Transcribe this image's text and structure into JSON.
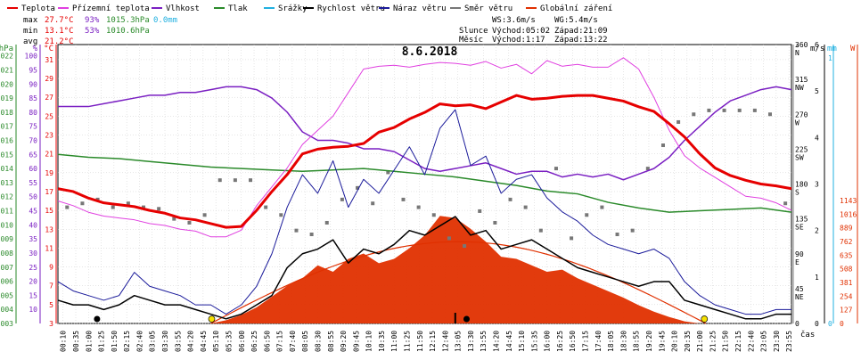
{
  "legend": {
    "items": [
      {
        "label": "Teplota",
        "color": "#e60000"
      },
      {
        "label": "Přízemní teplota",
        "color": "#e040e0"
      },
      {
        "label": "Vlhkost",
        "color": "#7a1fc2"
      },
      {
        "label": "Tlak",
        "color": "#2a8a2a"
      },
      {
        "label": "Srážky",
        "color": "#20b0e0"
      },
      {
        "label": "Rychlost větru",
        "color": "#000000"
      },
      {
        "label": "Náraz větru",
        "color": "#1a1a9a"
      },
      {
        "label": "Směr větru",
        "color": "#777777"
      },
      {
        "label": "Globální záření",
        "color": "#e03000"
      }
    ]
  },
  "stats": {
    "max": {
      "label": "max",
      "temp": "27.7°C",
      "hum": "93%",
      "press": "1015.3hPa",
      "rain": "0.0mm"
    },
    "min": {
      "label": "min",
      "temp": "13.1°C",
      "hum": "53%",
      "press": "1010.6hPa"
    },
    "avg": {
      "label": "avg",
      "temp": "21.2°C"
    }
  },
  "wind": {
    "ws": "WS:3.6m/s",
    "wg": "WG:5.4m/s"
  },
  "sun": {
    "label": "Slunce",
    "rise": "Východ:05:02",
    "set": "Západ:21:09"
  },
  "moon": {
    "label": "Měsíc",
    "rise": "Východ:1:17",
    "set": "Západ:13:22"
  },
  "colors": {
    "temp": "#e60000",
    "dew": "#e040e0",
    "hum": "#7a1fc2",
    "press": "#2a8a2a",
    "rain": "#20b0e0",
    "ws": "#000000",
    "wg": "#1a1a9a",
    "dir": "#777777",
    "rad": "#e03000",
    "bg": "#ffffff",
    "grid": "#cccccc"
  },
  "chart_data": {
    "type": "line",
    "title": "8.6.2018",
    "xlabel": "čas",
    "x_range_hours": [
      0,
      24
    ],
    "x_ticks": [
      "00:10",
      "00:35",
      "01:00",
      "01:25",
      "01:50",
      "02:15",
      "02:40",
      "03:05",
      "03:30",
      "03:55",
      "04:20",
      "04:45",
      "05:10",
      "05:35",
      "06:00",
      "06:25",
      "06:50",
      "07:15",
      "07:40",
      "08:05",
      "08:30",
      "08:55",
      "09:20",
      "09:45",
      "10:10",
      "10:35",
      "11:00",
      "11:25",
      "11:50",
      "12:15",
      "12:40",
      "13:05",
      "13:30",
      "13:55",
      "14:20",
      "14:45",
      "15:10",
      "15:35",
      "16:00",
      "16:25",
      "16:50",
      "17:15",
      "17:40",
      "18:05",
      "18:30",
      "18:55",
      "19:20",
      "19:45",
      "20:10",
      "20:35",
      "21:00",
      "21:25",
      "21:50",
      "22:15",
      "22:40",
      "23:05",
      "23:30",
      "23:55"
    ],
    "axes": {
      "press": {
        "label": "hPa",
        "ticks": [
          "1003",
          "1004",
          "1005",
          "1006",
          "1007",
          "1008",
          "1009",
          "1010",
          "1011",
          "1012",
          "1013",
          "1014",
          "1015",
          "1016",
          "1017",
          "1018",
          "1019",
          "1020",
          "1021",
          "1022"
        ],
        "range": [
          1003,
          1022.8
        ]
      },
      "hum": {
        "label": "%",
        "ticks": [
          "10",
          "15",
          "20",
          "25",
          "30",
          "35",
          "40",
          "45",
          "50",
          "55",
          "60",
          "65",
          "70",
          "75",
          "80",
          "85",
          "90",
          "95",
          "100"
        ],
        "range": [
          5,
          104
        ]
      },
      "temp": {
        "label": "°C",
        "ticks": [
          "3",
          "5",
          "7",
          "9",
          "11",
          "13",
          "15",
          "17",
          "19",
          "21",
          "23",
          "25",
          "27",
          "29",
          "31"
        ],
        "range": [
          3,
          32.6
        ]
      },
      "dir": {
        "label": "°",
        "ticks": [
          "0",
          "45 NE",
          "90 E",
          "135 SE",
          "180 S",
          "225 SW",
          "270 W",
          "315 NW",
          "360 N"
        ],
        "range": [
          0,
          360
        ]
      },
      "windspeed": {
        "label": "m/s",
        "ticks": [
          "0",
          "1",
          "2",
          "3",
          "4",
          "5",
          "6"
        ],
        "range": [
          0,
          6
        ]
      },
      "rain": {
        "label": "mm",
        "ticks": [
          "0",
          "1"
        ],
        "range": [
          0,
          1
        ]
      },
      "rad": {
        "label": "W",
        "ticks": [
          "0",
          "127",
          "254",
          "381",
          "508",
          "635",
          "762",
          "889",
          "1016",
          "1143"
        ],
        "range": [
          0,
          1143
        ]
      }
    },
    "series": [
      {
        "name": "Teplota",
        "unit": "°C",
        "x": [
          0,
          0.5,
          1,
          1.5,
          2,
          2.5,
          3,
          3.5,
          4,
          4.5,
          5,
          5.5,
          6,
          6.5,
          7,
          7.5,
          8,
          8.5,
          9,
          9.5,
          10,
          10.5,
          11,
          11.5,
          12,
          12.5,
          13,
          13.5,
          14,
          14.5,
          15,
          15.5,
          16,
          16.5,
          17,
          17.5,
          18,
          18.5,
          19,
          19.5,
          20,
          20.5,
          21,
          21.5,
          22,
          22.5,
          23,
          23.5,
          24
        ],
        "values": [
          17.3,
          17,
          16.3,
          15.8,
          15.6,
          15.4,
          15,
          14.7,
          14.2,
          14,
          13.6,
          13.2,
          13.3,
          15,
          17,
          18.8,
          21,
          21.5,
          21.7,
          21.8,
          22.1,
          23.3,
          23.8,
          24.7,
          25.4,
          26.3,
          26.1,
          26.2,
          25.8,
          26.5,
          27.2,
          26.8,
          26.9,
          27.1,
          27.2,
          27.2,
          26.9,
          26.6,
          26,
          25.5,
          24.2,
          22.8,
          21,
          19.5,
          18.7,
          18.2,
          17.8,
          17.6,
          17.3
        ]
      },
      {
        "name": "Přízemní teplota",
        "unit": "°C",
        "x": [
          0,
          0.5,
          1,
          1.5,
          2,
          2.5,
          3,
          3.5,
          4,
          4.5,
          5,
          5.5,
          6,
          6.5,
          7,
          7.5,
          8,
          8.5,
          9,
          9.5,
          10,
          10.5,
          11,
          11.5,
          12,
          12.5,
          13,
          13.5,
          14,
          14.5,
          15,
          15.5,
          16,
          16.5,
          17,
          17.5,
          18,
          18.5,
          19,
          19.5,
          20,
          20.5,
          21,
          21.5,
          22,
          22.5,
          23,
          23.5,
          24
        ],
        "values": [
          16,
          15.5,
          14.8,
          14.4,
          14.2,
          14,
          13.6,
          13.4,
          13,
          12.8,
          12.2,
          12.2,
          12.9,
          15.5,
          17.5,
          19.5,
          22,
          23.5,
          25,
          27.5,
          30,
          30.3,
          30.4,
          30.2,
          30.5,
          30.7,
          30.6,
          30.4,
          30.8,
          30.1,
          30.5,
          29.5,
          30.9,
          30.3,
          30.5,
          30.2,
          30.2,
          31.2,
          30,
          27,
          23.5,
          20.8,
          19.5,
          18.5,
          17.5,
          16.5,
          16.3,
          15.8,
          15
        ]
      },
      {
        "name": "Vlhkost",
        "unit": "%",
        "x": [
          0,
          0.5,
          1,
          1.5,
          2,
          2.5,
          3,
          3.5,
          4,
          4.5,
          5,
          5.5,
          6,
          6.5,
          7,
          7.5,
          8,
          8.5,
          9,
          9.5,
          10,
          10.5,
          11,
          11.5,
          12,
          12.5,
          13,
          13.5,
          14,
          14.5,
          15,
          15.5,
          16,
          16.5,
          17,
          17.5,
          18,
          18.5,
          19,
          19.5,
          20,
          20.5,
          21,
          21.5,
          22,
          22.5,
          23,
          23.5,
          24
        ],
        "values": [
          82,
          82,
          82,
          83,
          84,
          85,
          86,
          86,
          87,
          87,
          88,
          89,
          89,
          88,
          85,
          80,
          73,
          70,
          70,
          69,
          67,
          67,
          66,
          63,
          60,
          59,
          60,
          61,
          62,
          60,
          58,
          59,
          59,
          57,
          58,
          57,
          58,
          56,
          58,
          60,
          64,
          70,
          75,
          80,
          84,
          86,
          88,
          89,
          88
        ]
      },
      {
        "name": "Tlak",
        "unit": "hPa",
        "x": [
          0,
          1,
          2,
          3,
          4,
          5,
          6,
          7,
          8,
          9,
          10,
          11,
          12,
          13,
          14,
          15,
          16,
          17,
          18,
          19,
          20,
          21,
          22,
          23,
          24
        ],
        "values": [
          1015,
          1014.8,
          1014.7,
          1014.5,
          1014.3,
          1014.1,
          1014,
          1013.9,
          1013.8,
          1013.9,
          1014,
          1013.8,
          1013.6,
          1013.4,
          1013.1,
          1012.8,
          1012.4,
          1012.2,
          1011.6,
          1011.2,
          1010.9,
          1011,
          1011.1,
          1011.2,
          1010.9
        ]
      },
      {
        "name": "Rychlost větru",
        "unit": "m/s",
        "x": [
          0,
          0.5,
          1,
          1.5,
          2,
          2.5,
          3,
          3.5,
          4,
          4.5,
          5,
          5.5,
          6,
          6.5,
          7,
          7.5,
          8,
          8.5,
          9,
          9.5,
          10,
          10.5,
          11,
          11.5,
          12,
          12.5,
          13,
          13.5,
          14,
          14.5,
          15,
          15.5,
          16,
          16.5,
          17,
          17.5,
          18,
          18.5,
          19,
          19.5,
          20,
          20.5,
          21,
          21.5,
          22,
          22.5,
          23,
          23.5,
          24
        ],
        "values": [
          0.5,
          0.4,
          0.4,
          0.3,
          0.4,
          0.6,
          0.5,
          0.4,
          0.4,
          0.3,
          0.2,
          0.1,
          0.2,
          0.4,
          0.6,
          1.2,
          1.5,
          1.6,
          1.8,
          1.3,
          1.6,
          1.5,
          1.7,
          2,
          1.9,
          2.1,
          2.3,
          1.9,
          2,
          1.6,
          1.7,
          1.8,
          1.6,
          1.4,
          1.2,
          1.1,
          1,
          0.9,
          0.8,
          0.9,
          0.9,
          0.5,
          0.4,
          0.3,
          0.2,
          0.1,
          0.1,
          0.2,
          0.2
        ]
      },
      {
        "name": "Náraz větru",
        "unit": "m/s",
        "x": [
          0,
          0.5,
          1,
          1.5,
          2,
          2.5,
          3,
          3.5,
          4,
          4.5,
          5,
          5.5,
          6,
          6.5,
          7,
          7.5,
          8,
          8.5,
          9,
          9.5,
          10,
          10.5,
          11,
          11.5,
          12,
          12.5,
          13,
          13.5,
          14,
          14.5,
          15,
          15.5,
          16,
          16.5,
          17,
          17.5,
          18,
          18.5,
          19,
          19.5,
          20,
          20.5,
          21,
          21.5,
          22,
          22.5,
          23,
          23.5,
          24
        ],
        "values": [
          0.9,
          0.7,
          0.6,
          0.5,
          0.6,
          1.1,
          0.8,
          0.7,
          0.6,
          0.4,
          0.4,
          0.2,
          0.4,
          0.8,
          1.5,
          2.5,
          3.2,
          2.8,
          3.5,
          2.5,
          3.1,
          2.8,
          3.3,
          3.8,
          3.2,
          4.2,
          4.6,
          3.4,
          3.6,
          2.8,
          3.1,
          3.2,
          2.7,
          2.4,
          2.2,
          1.9,
          1.7,
          1.6,
          1.5,
          1.6,
          1.4,
          0.9,
          0.6,
          0.4,
          0.3,
          0.2,
          0.2,
          0.3,
          0.3
        ]
      },
      {
        "name": "Globální záření",
        "unit": "W",
        "x": [
          5,
          5.5,
          6,
          6.5,
          7,
          7.5,
          8,
          8.5,
          9,
          9.5,
          10,
          10.5,
          11,
          11.5,
          12,
          12.5,
          13,
          13.5,
          14,
          14.5,
          15,
          15.5,
          16,
          16.5,
          17,
          17.5,
          18,
          18.5,
          19,
          19.5,
          20,
          20.5,
          21
        ],
        "values": [
          0,
          30,
          80,
          150,
          250,
          350,
          420,
          540,
          480,
          600,
          650,
          560,
          600,
          700,
          820,
          1000,
          980,
          880,
          760,
          620,
          600,
          540,
          480,
          500,
          420,
          360,
          300,
          240,
          170,
          110,
          60,
          20,
          0
        ]
      },
      {
        "name": "Směr větru",
        "unit": "°",
        "x": [
          0.3,
          0.8,
          1.3,
          1.8,
          2.3,
          2.8,
          3.3,
          3.8,
          4.3,
          4.8,
          5.3,
          5.8,
          6.3,
          6.8,
          7.3,
          7.8,
          8.3,
          8.8,
          9.3,
          9.8,
          10.3,
          10.8,
          11.3,
          11.8,
          12.3,
          12.8,
          13.3,
          13.8,
          14.3,
          14.8,
          15.3,
          15.8,
          16.3,
          16.8,
          17.3,
          17.8,
          18.3,
          18.8,
          19.3,
          19.8,
          20.3,
          20.8,
          21.3,
          21.8,
          22.3,
          22.8,
          23.3,
          23.8
        ],
        "values": [
          150,
          155,
          160,
          150,
          155,
          150,
          148,
          135,
          130,
          140,
          185,
          185,
          185,
          150,
          140,
          120,
          115,
          130,
          160,
          175,
          155,
          195,
          160,
          150,
          140,
          110,
          100,
          145,
          130,
          160,
          150,
          120,
          200,
          110,
          140,
          150,
          115,
          120,
          200,
          230,
          260,
          270,
          275,
          275,
          275,
          275,
          270,
          155
        ]
      }
    ]
  }
}
